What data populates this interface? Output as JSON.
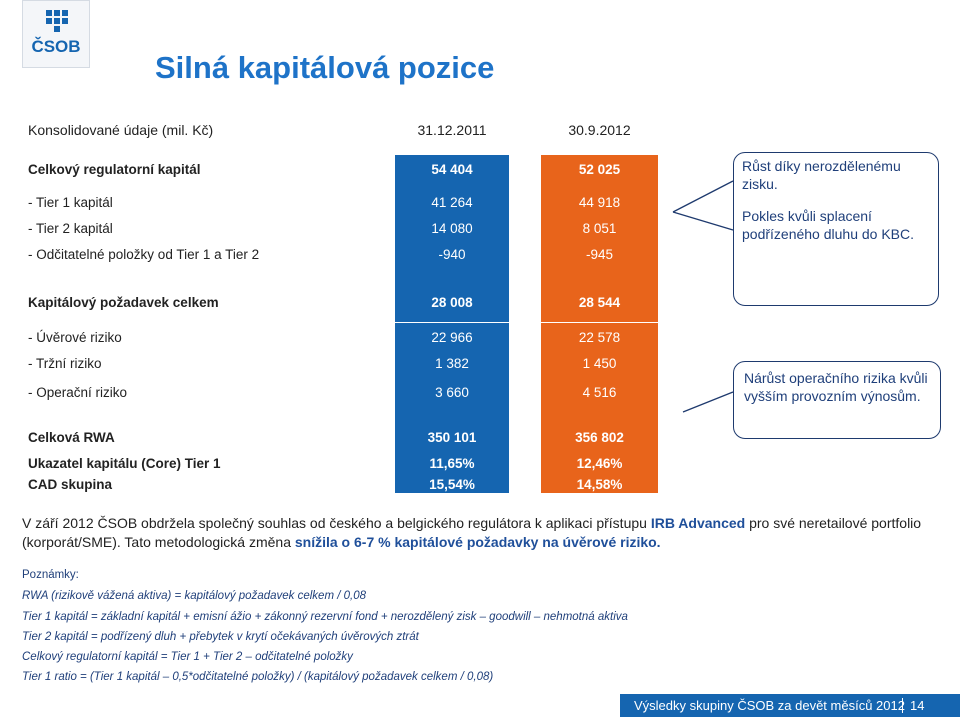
{
  "logo": {
    "text": "ČSOB"
  },
  "title": "Silná kapitálová pozice",
  "header": {
    "label": "Konsolidované údaje (mil. Kč)",
    "col1": "31.12.2011",
    "col2": "30.9.2012"
  },
  "table": {
    "rows": [
      {
        "label": "Celkový regulatorní kapitál",
        "v1": "54 404",
        "v2": "52 025",
        "bold": true
      },
      {
        "label": "- Tier 1 kapitál",
        "v1": "41 264",
        "v2": "44 918"
      },
      {
        "label": "- Tier 2 kapitál",
        "v1": "14 080",
        "v2": "8 051"
      },
      {
        "label": "- Odčitatelné položky od Tier 1 a Tier 2",
        "v1": "-940",
        "v2": "-945"
      },
      {
        "label": "Kapitálový požadavek celkem",
        "v1": "28 008",
        "v2": "28 544",
        "bold": true
      },
      {
        "label": "- Úvěrové riziko",
        "v1": "22 966",
        "v2": "22 578"
      },
      {
        "label": "- Tržní riziko",
        "v1": "1 382",
        "v2": "1 450"
      },
      {
        "label": "- Operační riziko",
        "v1": "3 660",
        "v2": "4 516"
      },
      {
        "label": "Celková RWA",
        "v1": "350 101",
        "v2": "356 802",
        "bold": true
      },
      {
        "label": "Ukazatel kapitálu (Core) Tier 1",
        "v1": "11,65%",
        "v2": "12,46%",
        "bold": true
      },
      {
        "label": "CAD skupina",
        "v1": "15,54%",
        "v2": "14,58%",
        "bold": true
      }
    ]
  },
  "callouts": {
    "top_line1": "Růst díky nerozdělenému zisku.",
    "top_line2": "Pokles kvůli splacení podřízeného dluhu do KBC.",
    "bottom": "Nárůst operačního rizika kvůli vyšším provozním výnosům."
  },
  "paragraph": {
    "p1": "V září 2012 ČSOB obdržela společný souhlas od českého a belgického regulátora k aplikaci přístupu ",
    "b1": "IRB Advanced",
    "p2": " pro své neretailové portfolio (korporát/SME). Tato metodologická změna ",
    "b2": "snížila o 6-7 % kapitálové požadavky na úvěrové riziko."
  },
  "notes": {
    "heading": "Poznámky:",
    "items": [
      "RWA (rizikově vážená aktiva) = kapitálový požadavek celkem / 0,08",
      "Tier 1 kapitál = základní kapitál + emisní ážio + zákonný rezervní fond + nerozdělený zisk – goodwill – nehmotná aktiva",
      "Tier 2 kapitál = podřízený dluh + přebytek v krytí očekávaných úvěrových ztrát",
      "Celkový regulatorní kapitál = Tier 1 + Tier 2 – odčitatelné položky",
      "Tier 1 ratio = (Tier 1 kapitál – 0,5*odčitatelné položky) / (kapitálový požadavek celkem / 0,08)"
    ]
  },
  "footer": {
    "text": "Výsledky skupiny ČSOB za devět měsíců 2012",
    "page": "14"
  },
  "colors": {
    "blue": "#1565b0",
    "orange": "#e8641b",
    "title": "#1e73c8"
  }
}
